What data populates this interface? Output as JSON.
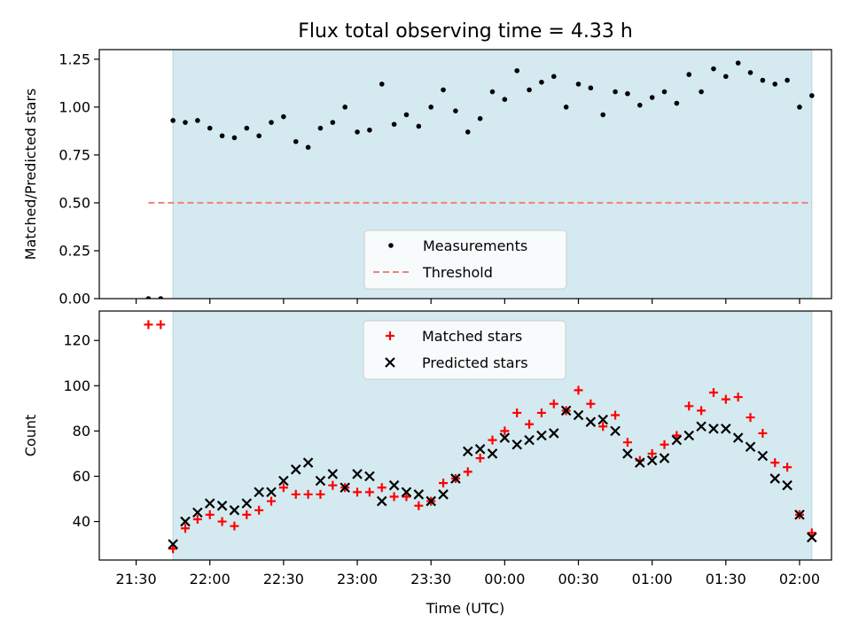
{
  "chart_data": {
    "type": "scatter",
    "title": "Flux total observing time = 4.33 h",
    "xlabel": "Time (UTC)",
    "x_tick_labels": [
      "21:30",
      "22:00",
      "22:30",
      "23:00",
      "23:30",
      "00:00",
      "00:30",
      "01:00",
      "01:30",
      "02:00"
    ],
    "shaded_interval": {
      "start": "21:45",
      "end": "02:05",
      "color": "#d4eaf0"
    },
    "panels": [
      {
        "ylabel": "Matched/Predicted stars",
        "ylim": [
          0,
          1.3
        ],
        "y_ticks": [
          "0.00",
          "0.25",
          "0.50",
          "0.75",
          "1.00",
          "1.25"
        ],
        "y_tick_values": [
          0,
          0.25,
          0.5,
          0.75,
          1.0,
          1.25
        ],
        "legend_position": "lower-center",
        "threshold": {
          "name": "Threshold",
          "value": 0.5,
          "x_start": "21:35",
          "x_end": "02:05",
          "color": "#f08080"
        },
        "series": [
          {
            "name": "Measurements",
            "marker": "dot",
            "color": "#000000",
            "x": [
              "21:35",
              "21:40",
              "21:45",
              "21:50",
              "21:55",
              "22:00",
              "22:05",
              "22:10",
              "22:15",
              "22:20",
              "22:25",
              "22:30",
              "22:35",
              "22:40",
              "22:45",
              "22:50",
              "22:55",
              "23:00",
              "23:05",
              "23:10",
              "23:15",
              "23:20",
              "23:25",
              "23:30",
              "23:35",
              "23:40",
              "23:45",
              "23:50",
              "23:55",
              "00:00",
              "00:05",
              "00:10",
              "00:15",
              "00:20",
              "00:25",
              "00:30",
              "00:35",
              "00:40",
              "00:45",
              "00:50",
              "00:55",
              "01:00",
              "01:05",
              "01:10",
              "01:15",
              "01:20",
              "01:25",
              "01:30",
              "01:35",
              "01:40",
              "01:45",
              "01:50",
              "01:55",
              "02:00",
              "02:05"
            ],
            "y": [
              0.0,
              0.0,
              0.93,
              0.92,
              0.93,
              0.89,
              0.85,
              0.84,
              0.89,
              0.85,
              0.92,
              0.95,
              0.82,
              0.79,
              0.89,
              0.92,
              1.0,
              0.87,
              0.88,
              1.12,
              0.91,
              0.96,
              0.9,
              1.0,
              1.09,
              0.98,
              0.87,
              0.94,
              1.08,
              1.04,
              1.19,
              1.09,
              1.13,
              1.16,
              1.0,
              1.12,
              1.1,
              0.96,
              1.08,
              1.07,
              1.01,
              1.05,
              1.08,
              1.02,
              1.17,
              1.08,
              1.2,
              1.16,
              1.23,
              1.18,
              1.14,
              1.12,
              1.14,
              1.0,
              1.06
            ]
          }
        ]
      },
      {
        "ylabel": "Count",
        "ylim": [
          23,
          133
        ],
        "y_ticks": [
          "40",
          "60",
          "80",
          "100",
          "120"
        ],
        "y_tick_values": [
          40,
          60,
          80,
          100,
          120
        ],
        "legend_position": "upper-center",
        "series": [
          {
            "name": "Matched stars",
            "marker": "plus",
            "color": "#ff0000",
            "x": [
              "21:35",
              "21:40",
              "21:45",
              "21:50",
              "21:55",
              "22:00",
              "22:05",
              "22:10",
              "22:15",
              "22:20",
              "22:25",
              "22:30",
              "22:35",
              "22:40",
              "22:45",
              "22:50",
              "22:55",
              "23:00",
              "23:05",
              "23:10",
              "23:15",
              "23:20",
              "23:25",
              "23:30",
              "23:35",
              "23:40",
              "23:45",
              "23:50",
              "23:55",
              "00:00",
              "00:05",
              "00:10",
              "00:15",
              "00:20",
              "00:25",
              "00:30",
              "00:35",
              "00:40",
              "00:45",
              "00:50",
              "00:55",
              "01:00",
              "01:05",
              "01:10",
              "01:15",
              "01:20",
              "01:25",
              "01:30",
              "01:35",
              "01:40",
              "01:45",
              "01:50",
              "01:55",
              "02:00",
              "02:05"
            ],
            "y": [
              127,
              127,
              28,
              37,
              41,
              43,
              40,
              38,
              43,
              45,
              49,
              55,
              52,
              52,
              52,
              56,
              55,
              53,
              53,
              55,
              51,
              51,
              47,
              49,
              57,
              59,
              62,
              68,
              76,
              80,
              88,
              83,
              88,
              92,
              89,
              98,
              92,
              82,
              87,
              75,
              67,
              70,
              74,
              78,
              91,
              89,
              97,
              94,
              95,
              86,
              79,
              66,
              64,
              43,
              35
            ]
          },
          {
            "name": "Predicted stars",
            "marker": "x",
            "color": "#000000",
            "x": [
              "21:45",
              "21:50",
              "21:55",
              "22:00",
              "22:05",
              "22:10",
              "22:15",
              "22:20",
              "22:25",
              "22:30",
              "22:35",
              "22:40",
              "22:45",
              "22:50",
              "22:55",
              "23:00",
              "23:05",
              "23:10",
              "23:15",
              "23:20",
              "23:25",
              "23:30",
              "23:35",
              "23:40",
              "23:45",
              "23:50",
              "23:55",
              "00:00",
              "00:05",
              "00:10",
              "00:15",
              "00:20",
              "00:25",
              "00:30",
              "00:35",
              "00:40",
              "00:45",
              "00:50",
              "00:55",
              "01:00",
              "01:05",
              "01:10",
              "01:15",
              "01:20",
              "01:25",
              "01:30",
              "01:35",
              "01:40",
              "01:45",
              "01:50",
              "01:55",
              "02:00",
              "02:05"
            ],
            "y": [
              30,
              40,
              44,
              48,
              47,
              45,
              48,
              53,
              53,
              58,
              63,
              66,
              58,
              61,
              55,
              61,
              60,
              49,
              56,
              53,
              52,
              49,
              52,
              59,
              71,
              72,
              70,
              77,
              74,
              76,
              78,
              79,
              89,
              87,
              84,
              85,
              80,
              70,
              66,
              67,
              68,
              76,
              78,
              82,
              81,
              81,
              77,
              73,
              69,
              59,
              56,
              43,
              33
            ]
          }
        ]
      }
    ]
  }
}
